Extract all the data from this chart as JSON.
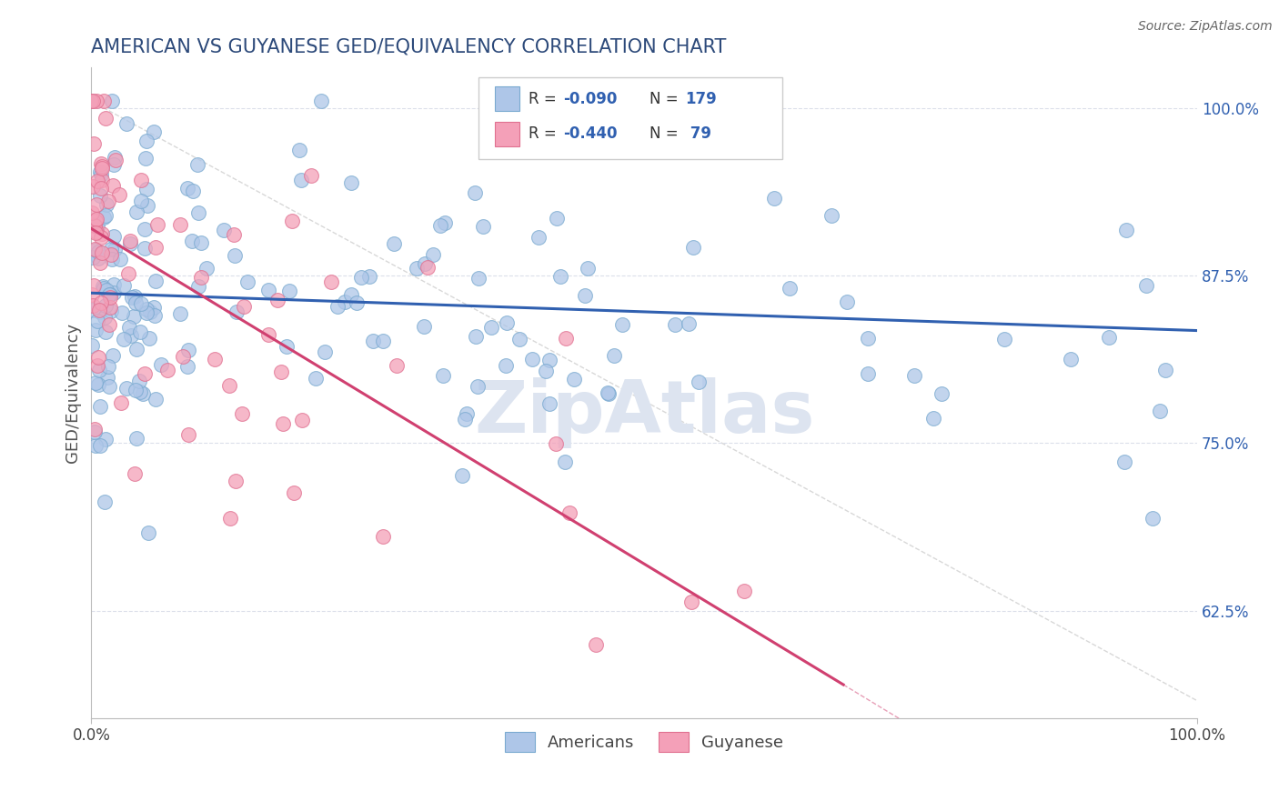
{
  "title": "AMERICAN VS GUYANESE GED/EQUIVALENCY CORRELATION CHART",
  "source": "Source: ZipAtlas.com",
  "ylabel": "GED/Equivalency",
  "yticks": [
    0.625,
    0.75,
    0.875,
    1.0
  ],
  "ytick_labels": [
    "62.5%",
    "75.0%",
    "87.5%",
    "100.0%"
  ],
  "xlim": [
    0.0,
    1.0
  ],
  "ylim": [
    0.545,
    1.03
  ],
  "american_color": "#aec6e8",
  "guyanese_color": "#f4a0b8",
  "american_edge_color": "#7aaad0",
  "guyanese_edge_color": "#e07090",
  "american_line_color": "#3060b0",
  "guyanese_line_color": "#d04070",
  "title_color": "#2d4a7a",
  "label_color": "#3060b0",
  "background_color": "#ffffff",
  "dashed_line_color": "#c8c8c8",
  "grid_color": "#d8dce8",
  "watermark_color": "#dde4f0"
}
